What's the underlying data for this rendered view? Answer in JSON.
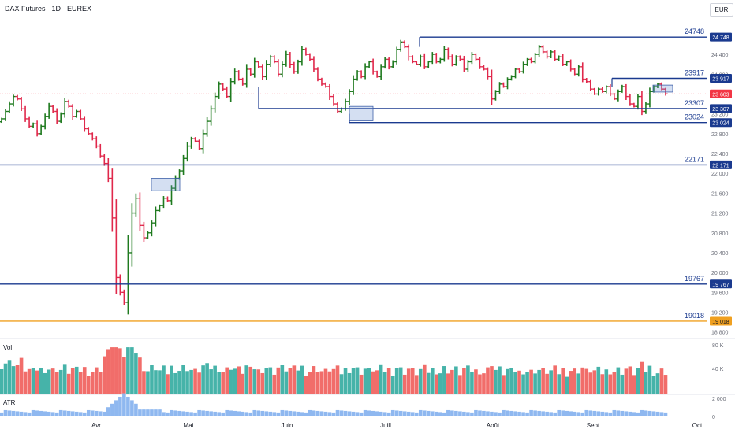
{
  "header": {
    "title": "DAX Futures · 1D · EUREX",
    "currency": "EUR"
  },
  "chart_data": {
    "type": "candlestick",
    "instrument": "DAX Futures",
    "timeframe": "1D",
    "exchange": "EUREX",
    "ylim": [
      18700,
      25100
    ],
    "y_ticks": [
      18800,
      19200,
      19600,
      20000,
      20400,
      20800,
      21200,
      21600,
      22000,
      22400,
      22800,
      23200,
      23600,
      24000,
      24400,
      24800
    ],
    "y_tick_labels": [
      "18 800",
      "19 200",
      "19 600",
      "20 000",
      "20 400",
      "20 800",
      "21 200",
      "21 600",
      "22 000",
      "22 400",
      "22 800",
      "23 200",
      "23 600",
      "24 000",
      "24 400",
      "24 800"
    ],
    "x_labels": [
      "Avr",
      "Mai",
      "Juin",
      "Juill",
      "Août",
      "Sept",
      "Oct"
    ],
    "levels": [
      {
        "value": 24748,
        "label": "24748",
        "tag": "24 748",
        "color": "#1a3a8f"
      },
      {
        "value": 23917,
        "label": "23917",
        "tag": "23 917",
        "color": "#1a3a8f"
      },
      {
        "value": 23307,
        "label": "23307",
        "tag": "23 307",
        "color": "#1a3a8f"
      },
      {
        "value": 23024,
        "label": "23024",
        "tag": "23 024",
        "color": "#1a3a8f"
      },
      {
        "value": 22171,
        "label": "22171",
        "tag": "22 171",
        "color": "#1a3a8f"
      },
      {
        "value": 19767,
        "label": "19767",
        "tag": "19 767",
        "color": "#1a3a8f"
      },
      {
        "value": 19018,
        "label": "19018",
        "tag": "19 018",
        "color": "#f0a020"
      }
    ],
    "last_price": {
      "value": 23603,
      "tag": "23 603",
      "color": "#f23645"
    },
    "closes": [
      23100,
      23250,
      23400,
      23550,
      23500,
      23300,
      23100,
      22950,
      23000,
      22800,
      22950,
      23150,
      23350,
      23250,
      23050,
      23200,
      23450,
      23350,
      23150,
      23250,
      23100,
      22900,
      22800,
      22700,
      22550,
      22350,
      22200,
      21900,
      21100,
      19900,
      19600,
      19400,
      20400,
      21200,
      21500,
      20950,
      20700,
      20800,
      21000,
      21250,
      21350,
      21500,
      21450,
      21700,
      21900,
      22050,
      22300,
      22550,
      22700,
      22650,
      22500,
      22800,
      23050,
      23300,
      23550,
      23800,
      23700,
      23550,
      23850,
      24050,
      23900,
      23800,
      24100,
      24000,
      24250,
      24150,
      23950,
      24200,
      24350,
      24250,
      24000,
      24200,
      24400,
      24200,
      24050,
      24250,
      24500,
      24400,
      24300,
      24100,
      23900,
      23800,
      23750,
      23550,
      23400,
      23250,
      23300,
      23450,
      23650,
      23900,
      24050,
      23950,
      24150,
      24250,
      24050,
      23950,
      24150,
      24300,
      24150,
      24250,
      24500,
      24650,
      24550,
      24350,
      24250,
      24200,
      24350,
      24150,
      24250,
      24400,
      24250,
      24300,
      24500,
      24350,
      24200,
      24350,
      24300,
      24100,
      24250,
      24400,
      24300,
      24150,
      24100,
      23950,
      23500,
      23650,
      23800,
      23750,
      23900,
      23950,
      24100,
      24050,
      24200,
      24300,
      24250,
      24400,
      24550,
      24450,
      24350,
      24450,
      24300,
      24350,
      24200,
      24250,
      24100,
      24000,
      24150,
      23900,
      23850,
      23700,
      23600,
      23700,
      23650,
      23750,
      23600,
      23500,
      23650,
      23750,
      23550,
      23400,
      23350,
      23550,
      23250,
      23400,
      23650,
      23750,
      23800,
      23700,
      23603
    ],
    "volume": {
      "label": "Vol",
      "ticks": [
        "80 K",
        "40 K"
      ],
      "max": 100000
    },
    "atr": {
      "label": "ATR",
      "ticks": [
        "2 000",
        "0"
      ],
      "max": 2200
    }
  }
}
